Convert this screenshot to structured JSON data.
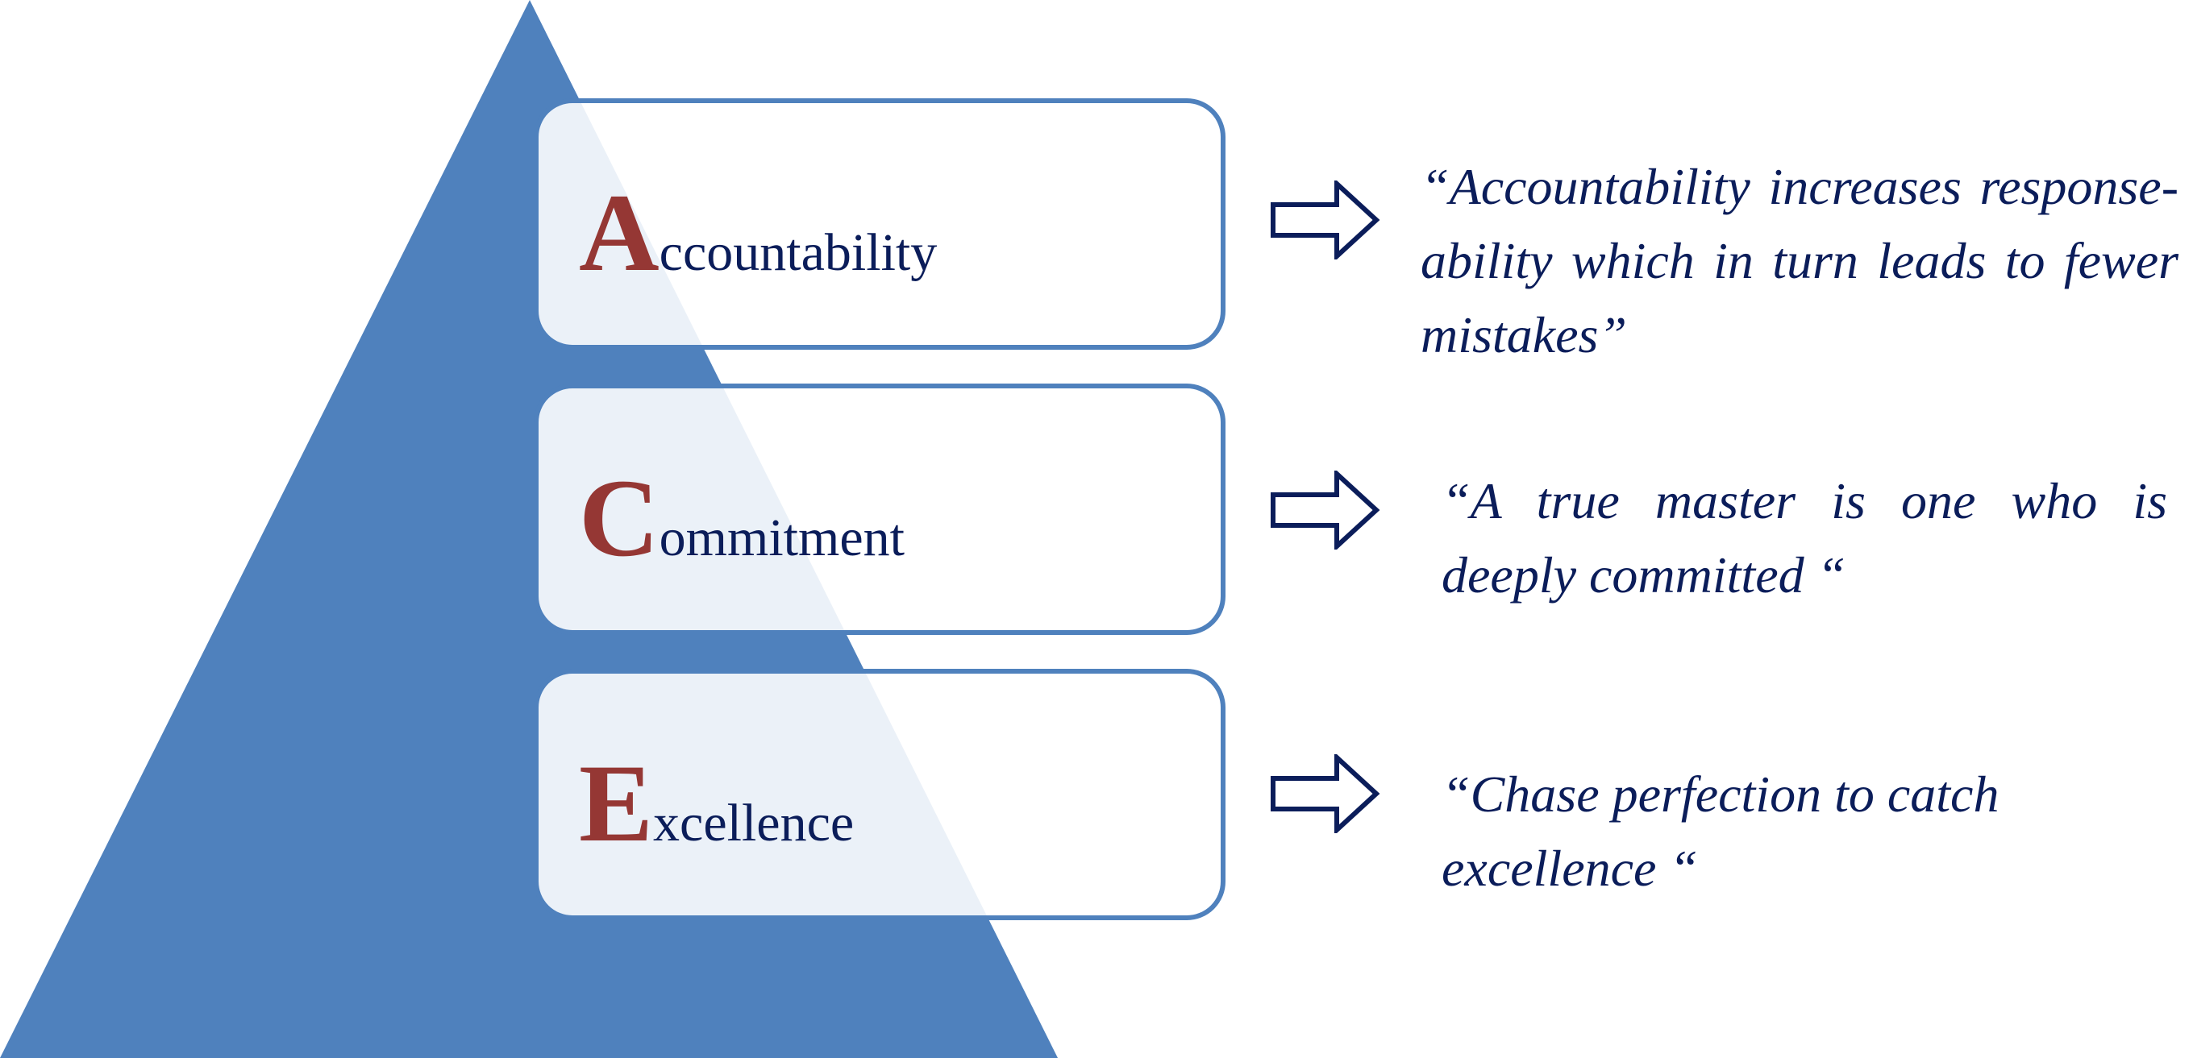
{
  "colors": {
    "pyramid_fill": "#4f81bd",
    "box_border": "#4f81bd",
    "initial_letter": "#953734",
    "text": "#0b1d5a",
    "arrow_stroke": "#0b1d5a"
  },
  "levels": [
    {
      "initial": "A",
      "rest": "ccountability",
      "quote": "“Accountability increases response-ability which in turn leads to fewer mistakes”"
    },
    {
      "initial": "C",
      "rest": "ommitment",
      "quote": "“A true master is one who is deeply committed “"
    },
    {
      "initial": "E",
      "rest": "xcellence",
      "quote": "“Chase perfection  to catch excellence “"
    }
  ],
  "icons": {
    "arrow": "right-arrow-outline-icon",
    "pyramid": "triangle-shape"
  }
}
